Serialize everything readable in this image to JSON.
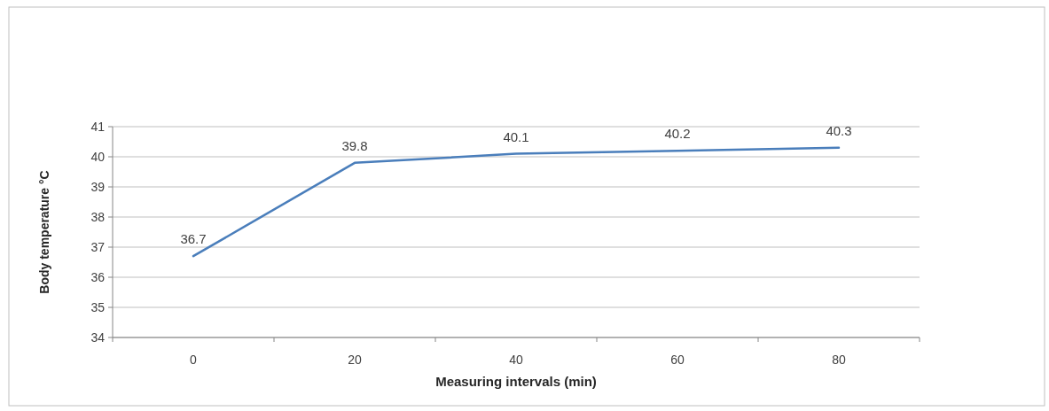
{
  "chart_data": {
    "type": "line",
    "xlabel": "Measuring intervals (min)",
    "ylabel": "Body temperature  °C",
    "categories": [
      "0",
      "20",
      "40",
      "60",
      "80"
    ],
    "series": [
      {
        "color": "#4a7ebb",
        "values": [
          36.7,
          39.8,
          40.1,
          40.2,
          40.3
        ]
      }
    ],
    "ylim": [
      34,
      41
    ],
    "yticks": [
      34,
      35,
      36,
      37,
      38,
      39,
      40,
      41
    ],
    "grid": "y",
    "data_labels": true,
    "marker": "none",
    "line_style": "solid"
  }
}
